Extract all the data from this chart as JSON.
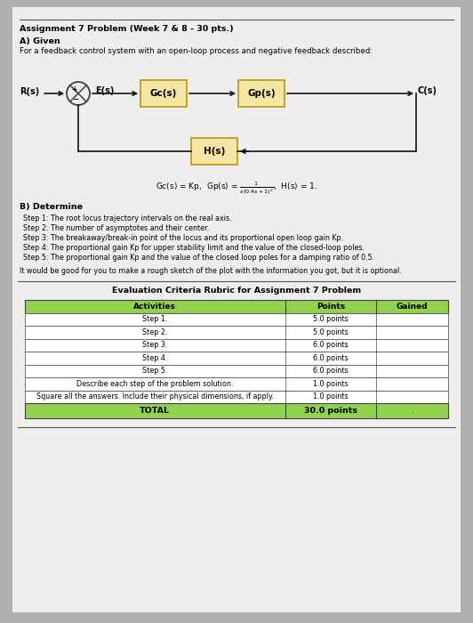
{
  "title": "Assignment 7 Problem (Week 7 & 8 - 30 pts.)",
  "section_a": "A) Given",
  "intro_text": "For a feedback control system with an open-loop process and negative feedback described:",
  "section_b": "B) Determine",
  "steps": [
    "Step 1: The root locus trajectory intervals on the real axis.",
    "Step 2: The number of asymptotes and their center.",
    "Step 3: The breakaway/break-in point of the locus and its proportional open loop gain Kp.",
    "Step 4: The proportional gain Kp for upper stability limit and the value of the closed-loop poles.",
    "Step 5: The proportional gain Kp and the value of the closed loop poles for a damping ratio of 0.5."
  ],
  "optional_text": "It would be good for you to make a rough sketch of the plot with the information you got, but it is optional.",
  "rubric_title": "Evaluation Criteria Rubric for Assignment 7 Problem",
  "table_headers": [
    "Activities",
    "Points",
    "Gained"
  ],
  "table_rows": [
    [
      "Step 1.",
      "5.0 points",
      ""
    ],
    [
      "Step 2.",
      "5.0 points",
      ""
    ],
    [
      "Step 3.",
      "6.0 points",
      ""
    ],
    [
      "Step 4.",
      "6.0 points",
      ""
    ],
    [
      "Step 5.",
      "6.0 points",
      ""
    ],
    [
      "Describe each step of the problem solution.",
      "1.0 points",
      ""
    ],
    [
      "Square all the answers. Include their physical dimensions, if apply.",
      "1.0 points",
      ""
    ]
  ],
  "total_row": [
    "TOTAL",
    "30.0 points",
    "."
  ],
  "box_fill": "#f5e6a3",
  "box_edge": "#b8a020",
  "table_header_fill": "#92d050",
  "table_total_fill": "#92d050",
  "page_bg": "#b0b0b0",
  "paper_bg": "#f0eeec"
}
